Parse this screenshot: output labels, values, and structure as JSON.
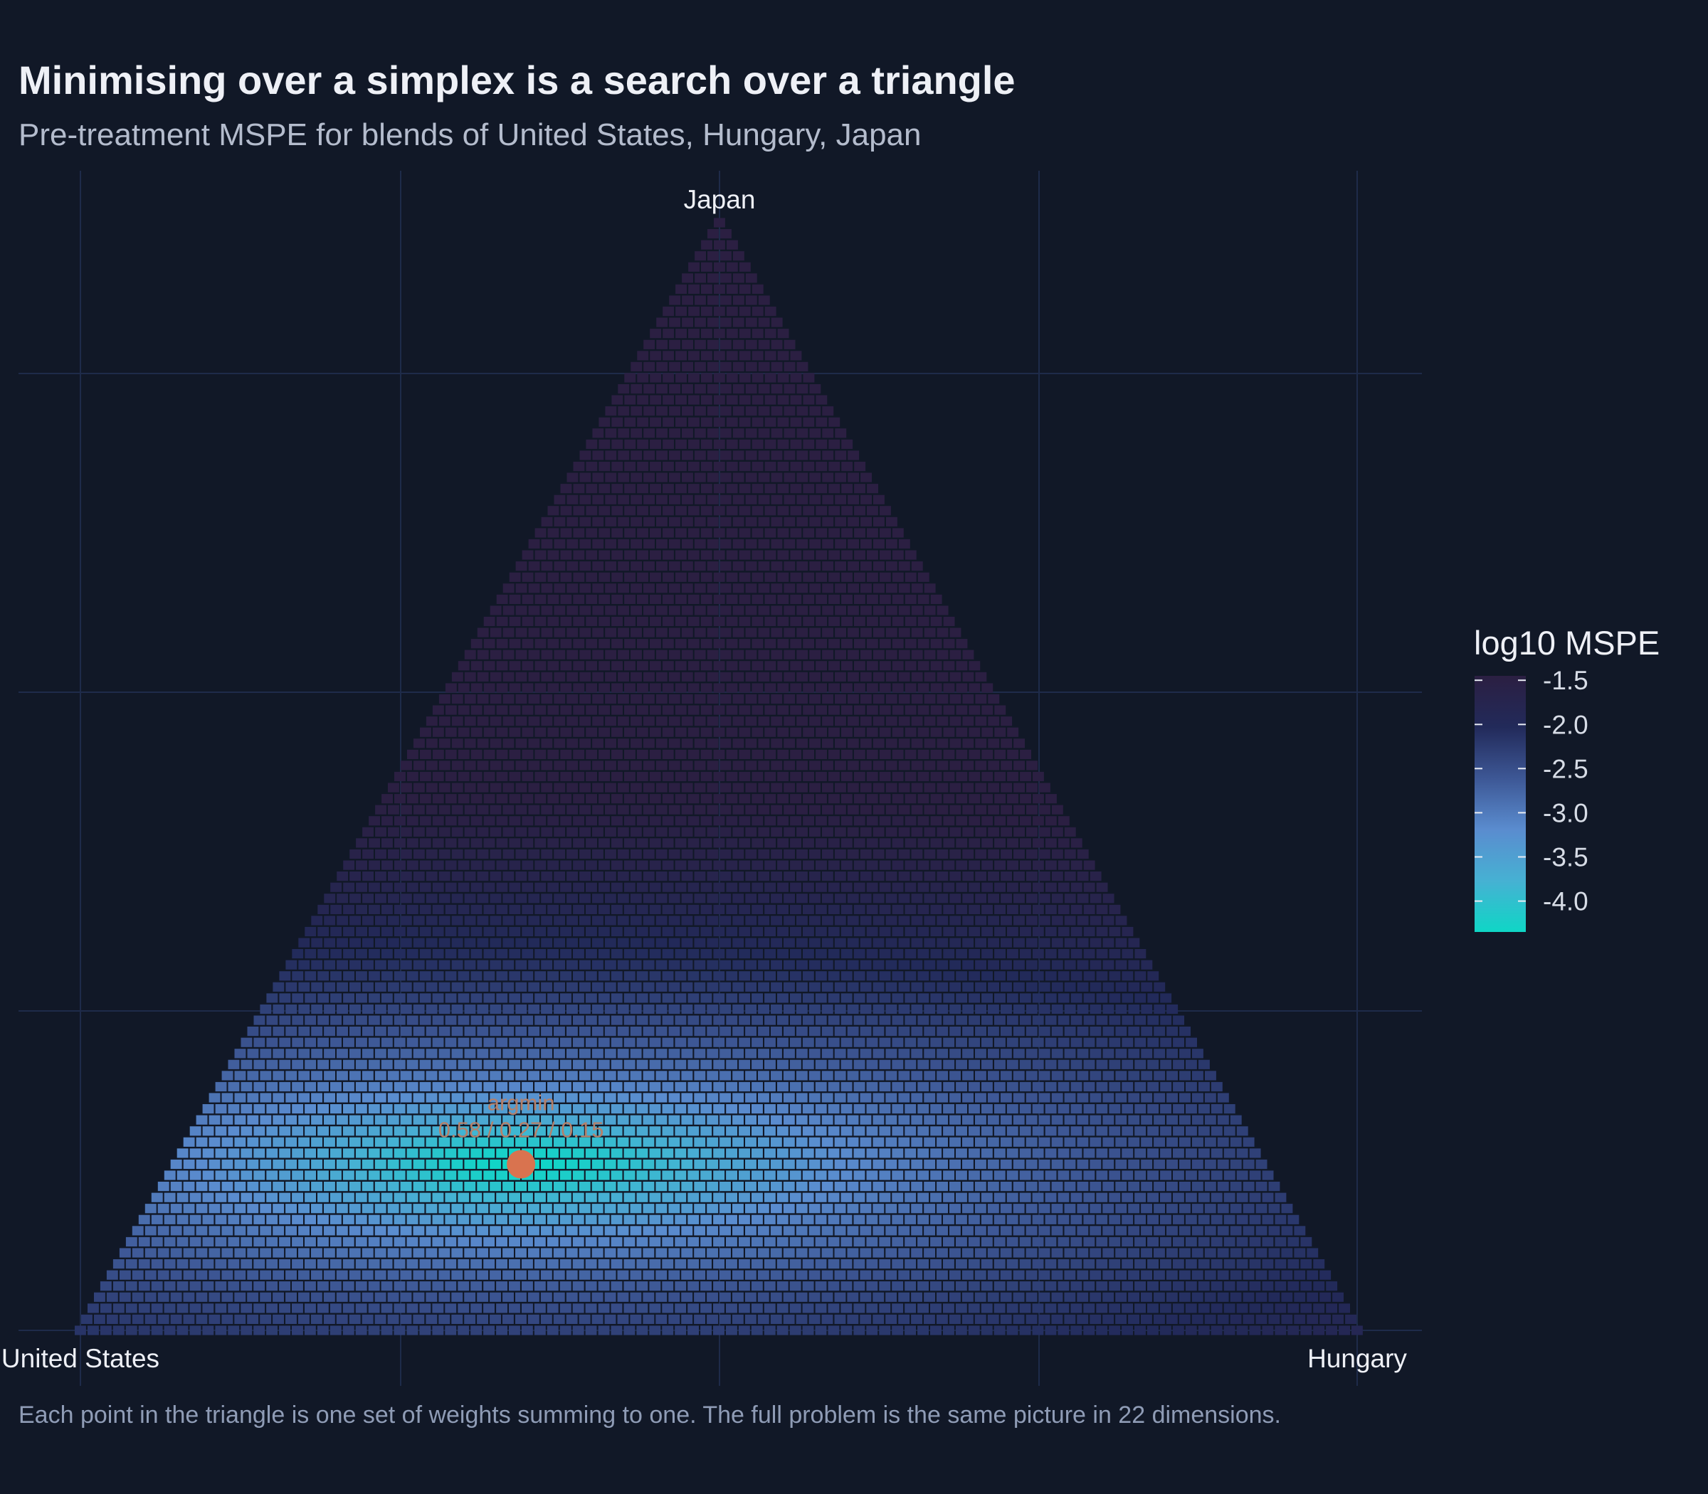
{
  "title": "Minimising over a simplex is a search over a triangle",
  "subtitle": "Pre-treatment MSPE for blends of United States, Hungary, Japan",
  "caption": "Each point in the triangle is one set of weights summing to one. The full problem is the same picture in 22 dimensions.",
  "colors": {
    "background": "#111827",
    "grid": "#1e2b4a",
    "argmin_point": "#d9734f",
    "argmin_label": "#b5806a",
    "scale": [
      "#0fd6c6",
      "#46b1d3",
      "#5a8ccf",
      "#3d5795",
      "#222a5a",
      "#2b1f42"
    ]
  },
  "chart_data": {
    "type": "heatmap",
    "geometry": "ternary",
    "title": "Minimising over a simplex is a search over a triangle",
    "subtitle": "Pre-treatment MSPE for blends of United States, Hungary, Japan",
    "vertices": [
      "United States",
      "Hungary",
      "Japan"
    ],
    "grid_resolution": 0.01,
    "grid": true,
    "fill_variable": "log10 MSPE",
    "legend": {
      "title": "log10 MSPE",
      "ticks": [
        "-1.5",
        "-2.0",
        "-2.5",
        "-3.0",
        "-3.5",
        "-4.0"
      ],
      "range": [
        -4.35,
        -1.45
      ],
      "placement": "right"
    },
    "surface": {
      "minimum": {
        "w_united_states": 0.58,
        "w_hungary": 0.27,
        "w_japan": 0.15,
        "log10_mspe": -4.35
      },
      "approx_values": [
        {
          "vertex": "Japan",
          "log10_mspe": -1.45
        },
        {
          "vertex": "United States",
          "log10_mspe": -3.1
        },
        {
          "vertex": "Hungary",
          "log10_mspe": -3.15
        }
      ]
    },
    "argmin": {
      "label": "argmin",
      "weights_text": "0.58 / 0.27 / 0.15",
      "weights": [
        0.58,
        0.27,
        0.15
      ]
    }
  }
}
